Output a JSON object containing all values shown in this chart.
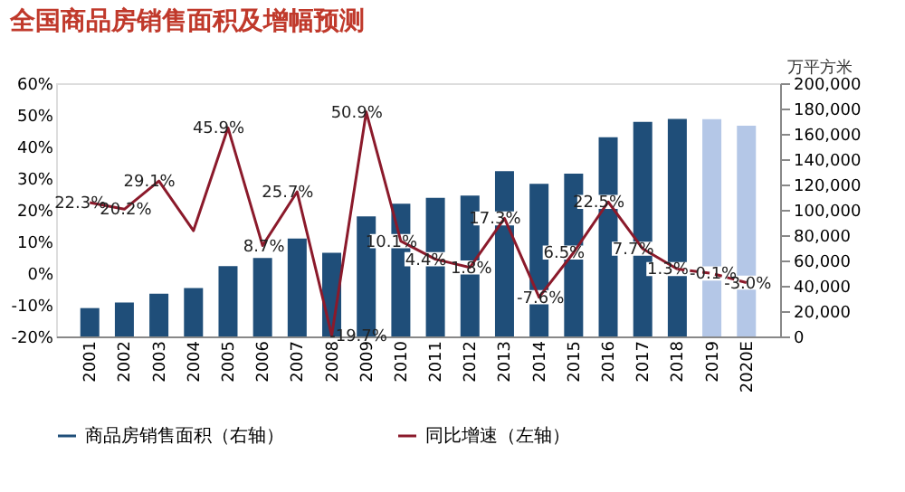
{
  "chart_data": {
    "type": "bar",
    "title": "全国商品房销售面积及增幅预测",
    "y2label": "万平方米",
    "categories": [
      "2001",
      "2002",
      "2003",
      "2004",
      "2005",
      "2006",
      "2007",
      "2008",
      "2009",
      "2010",
      "2011",
      "2012",
      "2013",
      "2014",
      "2015",
      "2016",
      "2017",
      "2018",
      "2019",
      "2020E"
    ],
    "series": [
      {
        "name": "商品房销售面积（右轴）",
        "axis": "y2",
        "color": "#1f4e79",
        "colors": [
          "#1f4e79",
          "#1f4e79",
          "#1f4e79",
          "#1f4e79",
          "#1f4e79",
          "#1f4e79",
          "#1f4e79",
          "#1f4e79",
          "#1f4e79",
          "#1f4e79",
          "#1f4e79",
          "#1f4e79",
          "#1f4e79",
          "#1f4e79",
          "#1f4e79",
          "#1f4e79",
          "#1f4e79",
          "#1f4e79",
          "#b4c7e7",
          "#b4c7e7"
        ],
        "values": [
          22400,
          26800,
          33700,
          38200,
          55500,
          61900,
          77400,
          66000,
          94800,
          104800,
          109400,
          111300,
          130600,
          120600,
          128500,
          157300,
          169400,
          171700,
          171600,
          166400
        ]
      },
      {
        "name": "同比增速（左轴）",
        "type": "line",
        "axis": "y",
        "color": "#8b1a2b",
        "line_style": "solid",
        "values": [
          22.3,
          20.2,
          29.1,
          13.4,
          45.9,
          8.7,
          25.7,
          -19.7,
          50.9,
          10.1,
          4.4,
          1.8,
          17.3,
          -7.6,
          6.5,
          22.5,
          7.7,
          1.3,
          null,
          null
        ],
        "value_labels": [
          "22.3%",
          "20.2%",
          "29.1%",
          null,
          "45.9%",
          "8.7%",
          "25.7%",
          "-19.7%",
          "50.9%",
          "10.1%",
          "4.4%",
          "1.8%",
          "17.3%",
          "-7.6%",
          "6.5%",
          "22.5%",
          "7.7%",
          "1.3%",
          null,
          null
        ]
      },
      {
        "type": "line",
        "axis": "y",
        "color": "#8b1a2b",
        "line_style": "dashed",
        "values": [
          null,
          null,
          null,
          null,
          null,
          null,
          null,
          null,
          null,
          null,
          null,
          null,
          null,
          null,
          null,
          null,
          null,
          1.3,
          -0.1,
          -3.0
        ],
        "value_labels": [
          null,
          null,
          null,
          null,
          null,
          null,
          null,
          null,
          null,
          null,
          null,
          null,
          null,
          null,
          null,
          null,
          null,
          null,
          "-0.1%",
          "-3.0%"
        ]
      }
    ],
    "ylim": [
      -20,
      60
    ],
    "yticks": [
      {
        "value": -20,
        "label": "-20%"
      },
      {
        "value": -10,
        "label": "-10%"
      },
      {
        "value": 0,
        "label": "0%"
      },
      {
        "value": 10,
        "label": "10%"
      },
      {
        "value": 20,
        "label": "20%"
      },
      {
        "value": 30,
        "label": "30%"
      },
      {
        "value": 40,
        "label": "40%"
      },
      {
        "value": 50,
        "label": "50%"
      },
      {
        "value": 60,
        "label": "60%"
      }
    ],
    "y2lim": [
      0,
      200000
    ],
    "y2ticks": [
      {
        "value": 0,
        "label": "0"
      },
      {
        "value": 20000,
        "label": "20,000"
      },
      {
        "value": 40000,
        "label": "40,000"
      },
      {
        "value": 60000,
        "label": "60,000"
      },
      {
        "value": 80000,
        "label": "80,000"
      },
      {
        "value": 100000,
        "label": "100,000"
      },
      {
        "value": 120000,
        "label": "120,000"
      },
      {
        "value": 140000,
        "label": "140,000"
      },
      {
        "value": 160000,
        "label": "160,000"
      },
      {
        "value": 180000,
        "label": "180,000"
      },
      {
        "value": 200000,
        "label": "200,000"
      }
    ],
    "grid": false,
    "legend": "bottom"
  }
}
